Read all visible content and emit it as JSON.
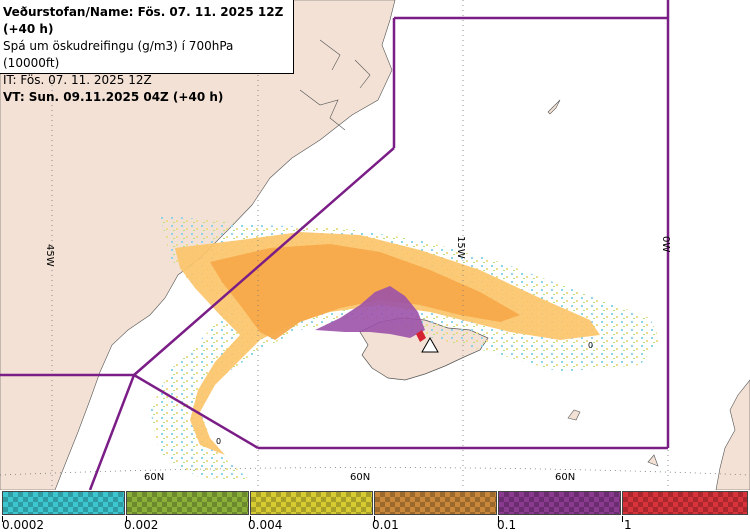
{
  "header": {
    "line1": "Veðurstofan/Name: Fös. 07. 11. 2025 12Z (+40 h)",
    "line2": "Spá um öskudreifingu (g/m3) í 700hPa (10000ft)",
    "line3": "IT: Fös. 07. 11. 2025 12Z",
    "line4": "VT: Sun. 09.11.2025 04Z (+40 h)"
  },
  "map": {
    "lon_labels": [
      "45W",
      "15W",
      "0W"
    ],
    "lat_labels": [
      "60N",
      "60N",
      "60N"
    ],
    "zero_labels": [
      "0",
      "0"
    ],
    "colors": {
      "land": "#f2e1d4",
      "sea": "#ffffff",
      "region_boundary": "#7b1d86",
      "ash_light": "#fcc468",
      "ash_medium": "#f7a94a",
      "ash_high": "#9c52a8",
      "ash_peak": "#d62230"
    }
  },
  "legend": {
    "bins": [
      {
        "color": "#3cc6cf",
        "label": "0.0002"
      },
      {
        "color": "#8ab03a",
        "label": "0.002"
      },
      {
        "color": "#d6cc32",
        "label": "0.004"
      },
      {
        "color": "#c8873a",
        "label": "0.01"
      },
      {
        "color": "#8a3a8f",
        "label": "0.1"
      },
      {
        "color": "#d8323a",
        "label": "1"
      }
    ]
  }
}
